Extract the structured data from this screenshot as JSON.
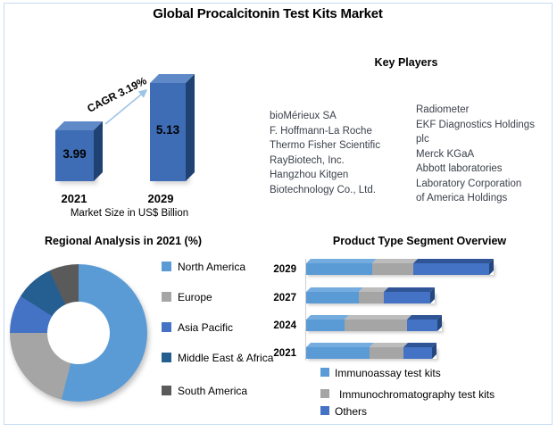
{
  "title": "Global Procalcitonin Test Kits Market",
  "key_players": {
    "heading": "Key Players",
    "left_lines": [
      "bioMérieux SA",
      "F. Hoffmann-La Roche",
      "Thermo Fisher Scientific",
      "RayBiotech, Inc.",
      "Hangzhou Kitgen",
      "Biotechnology Co., Ltd."
    ],
    "right_lines": [
      "Radiometer",
      "EKF Diagnostics Holdings",
      "plc",
      "Merck KGaA",
      "Abbott laboratories",
      "Laboratory Corporation",
      "of America Holdings"
    ]
  },
  "palette": {
    "frame_border": "#C7DCF2",
    "light_blue": "#5B9BD5",
    "gray": "#A5A5A5",
    "blue": "#4472C4",
    "dark_steel_blue": "#255E91",
    "dark_gray": "#5A5A5A",
    "bar_front": "#3E6CB5",
    "arrow": "#9DC3E6",
    "body_text": "#3A3F4A"
  },
  "chart_data": [
    {
      "type": "bar",
      "title": "Market Size in US$ Billion",
      "categories": [
        "2021",
        "2029"
      ],
      "values": [
        3.99,
        5.13
      ],
      "annotation": "CAGR 3.19%",
      "bar_color": "#3E6CB5",
      "style": "3d-column",
      "legend_position": "none"
    },
    {
      "type": "pie",
      "donut": true,
      "title": "Regional Analysis in 2021 (%)",
      "labels": [
        "North America",
        "Europe",
        "Asia Pacific",
        "Middle East & Africa",
        "South America"
      ],
      "values": [
        54,
        21,
        9,
        9,
        7
      ],
      "colors": [
        "#5B9BD5",
        "#A5A5A5",
        "#4472C4",
        "#255E91",
        "#5A5A5A"
      ],
      "start_angle_deg": 0,
      "direction": "clockwise",
      "legend_position": "right",
      "note": "percentages estimated from slice angles; no data labels shown"
    },
    {
      "type": "bar",
      "orientation": "horizontal-stacked",
      "style": "3d",
      "title": "Product Type Segment Overview",
      "categories": [
        "2029",
        "2027",
        "2024",
        "2021"
      ],
      "series": [
        {
          "name": "Immunoassay test kits",
          "color": "#5B9BD5",
          "color_top": "#74ACDF",
          "values": [
            74,
            59,
            43,
            71
          ]
        },
        {
          "name": "Immunochromatography test kits",
          "color": "#A5A5A5",
          "color_top": "#BCBCBC",
          "values": [
            46,
            28,
            70,
            38
          ]
        },
        {
          "name": "Others",
          "color": "#4472C4",
          "color_top": "#2F5597",
          "values": [
            85,
            52,
            34,
            32
          ]
        }
      ],
      "units": "relative bar length in px (no value axis shown)",
      "legend_position": "bottom"
    }
  ]
}
